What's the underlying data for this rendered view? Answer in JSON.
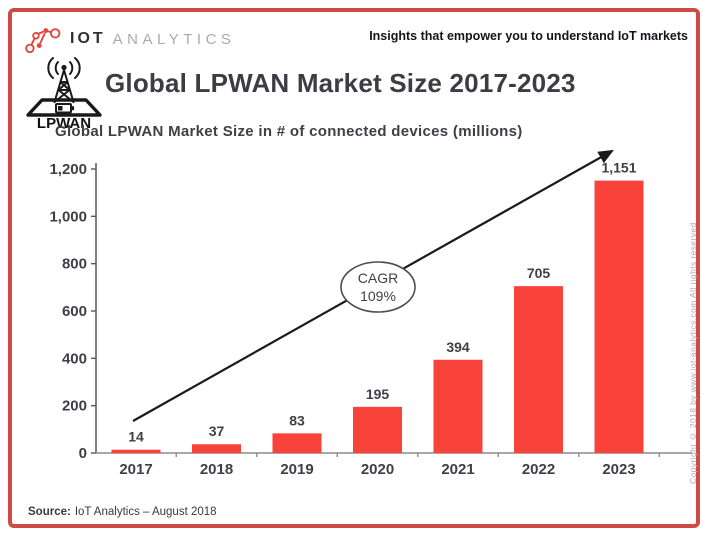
{
  "header": {
    "brand_iot": "IOT",
    "brand_analytics": "ANALYTICS",
    "tagline": "Insights that empower you to understand IoT markets"
  },
  "title": {
    "badge_label": "LPWAN",
    "text": "Global LPWAN Market Size 2017-2023"
  },
  "chart_data": {
    "type": "bar",
    "title": "Global LPWAN Market Size in # of connected devices (millions)",
    "categories": [
      "2017",
      "2018",
      "2019",
      "2020",
      "2021",
      "2022",
      "2023"
    ],
    "values": [
      14,
      37,
      83,
      195,
      394,
      705,
      1151
    ],
    "value_labels": [
      "14",
      "37",
      "83",
      "195",
      "394",
      "705",
      "1,151"
    ],
    "ylim": [
      0,
      1200
    ],
    "ytick_step": 200,
    "ytick_labels": [
      "0",
      "200",
      "400",
      "600",
      "800",
      "1,000",
      "1,200"
    ],
    "grid": false,
    "bar_color": "#f9423a",
    "annotation": {
      "line1": "CAGR",
      "line2": "109%"
    },
    "trend_arrow": true
  },
  "footer": {
    "source_label": "Source:",
    "source_text": "IoT Analytics – August 2018"
  },
  "copyright_note": "Copyright © 2018 by www.iot-analytics.com All rights reserved",
  "colors": {
    "accent_red": "#f9423a",
    "frame_red": "#cd4b44",
    "text_dark": "#3f3f46",
    "axis_gray": "#8c8c8c"
  }
}
